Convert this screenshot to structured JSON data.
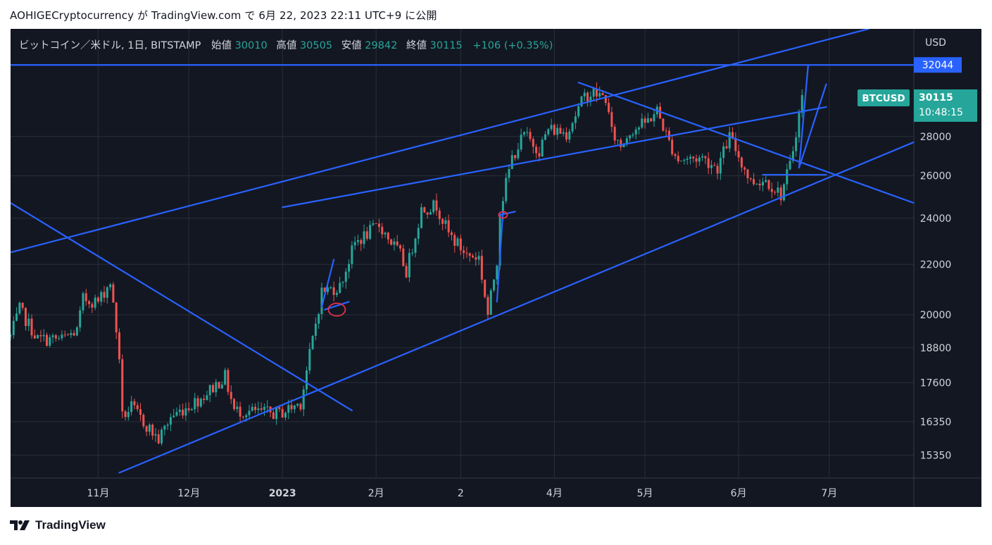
{
  "header": {
    "author": "AOHIGECryptocurrency",
    "ga": "が",
    "site": "TradingView.com",
    "de": "で",
    "datetime": "6月 22, 2023 22:11 UTC+9",
    "published": "に公開"
  },
  "footer": {
    "brand": "TradingView"
  },
  "legend": {
    "symbol": "ビットコイン／米ドル, 1日, BITSTAMP",
    "open_label": "始値",
    "open": "30010",
    "high_label": "高値",
    "high": "30505",
    "low_label": "安値",
    "low": "29842",
    "close_label": "終値",
    "close": "30115",
    "change": "+106 (+0.35%)"
  },
  "price_axis": {
    "currency": "USD",
    "h_level_label": "32044",
    "ticker_tag": "BTCUSD",
    "last_price": "30115",
    "countdown": "10:48:15"
  },
  "colors": {
    "background": "#131722",
    "up_candle": "#26a69a",
    "down_candle": "#ef5350",
    "drawing_line": "#2962ff",
    "marker": "#e0324a",
    "axis_text": "#d1d4dc",
    "grid": "#2a2e39"
  },
  "chart_data": {
    "type": "candlestick",
    "title": "ビットコイン／米ドル, 1日, BITSTAMP",
    "scale": "log",
    "ylim": [
      14700,
      34300
    ],
    "y_ticks": [
      15350,
      16350,
      17600,
      18800,
      20000,
      22000,
      24000,
      26000,
      28000
    ],
    "x_ticks": [
      {
        "label": "11月",
        "date": "2022-11-01"
      },
      {
        "label": "12月",
        "date": "2022-12-01"
      },
      {
        "label": "2023",
        "date": "2023-01-01"
      },
      {
        "label": "2月",
        "date": "2023-02-01"
      },
      {
        "label": "2",
        "date": "2023-03-01"
      },
      {
        "label": "4月",
        "date": "2023-04-01"
      },
      {
        "label": "5月",
        "date": "2023-05-01"
      },
      {
        "label": "6月",
        "date": "2023-06-01"
      },
      {
        "label": "7月",
        "date": "2023-07-01"
      }
    ],
    "xlim": [
      "2022-10-03",
      "2023-07-29"
    ],
    "trend_path": [
      [
        "2022-10-03",
        19200
      ],
      [
        "2022-10-06",
        20200
      ],
      [
        "2022-10-12",
        19100
      ],
      [
        "2022-10-20",
        19100
      ],
      [
        "2022-10-25",
        19400
      ],
      [
        "2022-10-27",
        20600
      ],
      [
        "2022-11-01",
        20500
      ],
      [
        "2022-11-05",
        21300
      ],
      [
        "2022-11-08",
        18500
      ],
      [
        "2022-11-09",
        16500
      ],
      [
        "2022-11-12",
        16800
      ],
      [
        "2022-11-21",
        15800
      ],
      [
        "2022-11-25",
        16500
      ],
      [
        "2022-12-05",
        17100
      ],
      [
        "2022-12-13",
        17800
      ],
      [
        "2022-12-16",
        16700
      ],
      [
        "2022-12-31",
        16600
      ],
      [
        "2023-01-07",
        16950
      ],
      [
        "2023-01-14",
        20900
      ],
      [
        "2023-01-20",
        21100
      ],
      [
        "2023-01-25",
        22900
      ],
      [
        "2023-02-02",
        23700
      ],
      [
        "2023-02-09",
        22400
      ],
      [
        "2023-02-11",
        21700
      ],
      [
        "2023-02-16",
        24400
      ],
      [
        "2023-02-21",
        24600
      ],
      [
        "2023-02-25",
        23300
      ],
      [
        "2023-03-03",
        22400
      ],
      [
        "2023-03-07",
        22300
      ],
      [
        "2023-03-10",
        20000
      ],
      [
        "2023-03-13",
        22200
      ],
      [
        "2023-03-14",
        24400
      ],
      [
        "2023-03-18",
        26900
      ],
      [
        "2023-03-22",
        28100
      ],
      [
        "2023-03-27",
        27300
      ],
      [
        "2023-03-30",
        28400
      ],
      [
        "2023-04-05",
        28200
      ],
      [
        "2023-04-11",
        30200
      ],
      [
        "2023-04-14",
        30400
      ],
      [
        "2023-04-18",
        30100
      ],
      [
        "2023-04-20",
        28200
      ],
      [
        "2023-04-23",
        27500
      ],
      [
        "2023-04-26",
        28300
      ],
      [
        "2023-05-01",
        28700
      ],
      [
        "2023-05-05",
        29400
      ],
      [
        "2023-05-09",
        27700
      ],
      [
        "2023-05-12",
        26800
      ],
      [
        "2023-05-20",
        26900
      ],
      [
        "2023-05-25",
        26400
      ],
      [
        "2023-05-29",
        28000
      ],
      [
        "2023-06-05",
        25700
      ],
      [
        "2023-06-10",
        25800
      ],
      [
        "2023-06-15",
        25100
      ],
      [
        "2023-06-18",
        26500
      ],
      [
        "2023-06-20",
        28300
      ],
      [
        "2023-06-22",
        30115
      ]
    ],
    "trendlines": [
      {
        "name": "upper-channel-line",
        "p1": [
          "2022-10-03",
          22500
        ],
        "p2": [
          "2023-07-14",
          34300
        ]
      },
      {
        "name": "middle-channel-line",
        "p1": [
          "2023-01-01",
          24500
        ],
        "p2": [
          "2023-06-30",
          29600
        ]
      },
      {
        "name": "lower-channel-line",
        "p1": [
          "2022-11-08",
          14850
        ],
        "p2": [
          "2023-07-29",
          27700
        ]
      },
      {
        "name": "descending-line-2022",
        "p1": [
          "2022-10-03",
          24700
        ],
        "p2": [
          "2023-01-24",
          16700
        ]
      },
      {
        "name": "descending-line-2023",
        "p1": [
          "2023-04-09",
          31000
        ],
        "p2": [
          "2023-07-29",
          24700
        ]
      },
      {
        "name": "range-bottom-line",
        "p1": [
          "2023-06-09",
          26050
        ],
        "p2": [
          "2023-06-30",
          26050
        ]
      },
      {
        "name": "breakout-line-1",
        "p1": [
          "2023-06-21",
          26400
        ],
        "p2": [
          "2023-06-24",
          32000
        ]
      },
      {
        "name": "breakout-line-2",
        "p1": [
          "2023-06-21",
          26400
        ],
        "p2": [
          "2023-06-30",
          30900
        ]
      },
      {
        "name": "jan-impulse-line",
        "p1": [
          "2023-01-14",
          20300
        ],
        "p2": [
          "2023-01-18",
          22200
        ]
      },
      {
        "name": "jan-neck-line",
        "p1": [
          "2023-01-15",
          20200
        ],
        "p2": [
          "2023-01-23",
          20500
        ]
      },
      {
        "name": "mar-impulse-line",
        "p1": [
          "2023-03-13",
          20500
        ],
        "p2": [
          "2023-03-15",
          24300
        ]
      },
      {
        "name": "mar-neck-line",
        "p1": [
          "2023-03-14",
          24150
        ],
        "p2": [
          "2023-03-19",
          24300
        ]
      }
    ],
    "horizontal_levels": [
      {
        "name": "resistance-32044",
        "value": 32044
      }
    ],
    "markers": [
      {
        "name": "jan-circle-marker",
        "date": "2023-01-19",
        "value": 20200
      },
      {
        "name": "mar-circle-marker",
        "date": "2023-03-15",
        "value": 24150
      }
    ]
  }
}
